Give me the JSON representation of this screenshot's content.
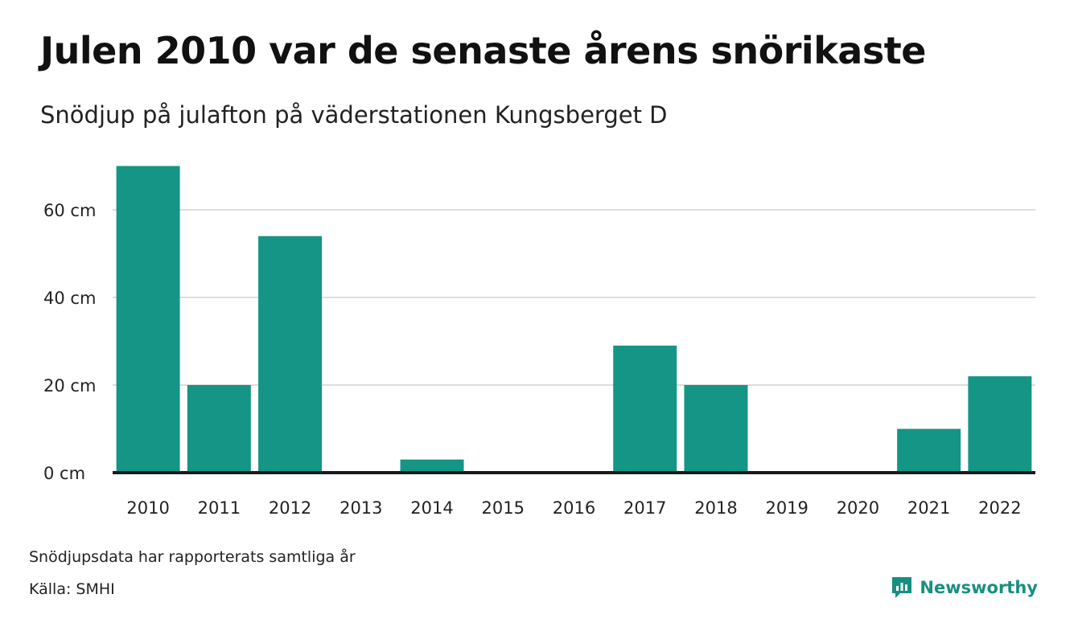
{
  "header": {
    "title": "Julen 2010 var de senaste årens snörikaste",
    "subtitle": "Snödjup på julafton på väderstationen Kungsberget D"
  },
  "footer": {
    "note": "Snödjupsdata har rapporterats samtliga år",
    "source": "Källa: SMHI",
    "brand": "Newsworthy"
  },
  "colors": {
    "bar": "#149585",
    "grid": "#dddddd",
    "baseline": "#1a1a1a",
    "brand": "#178f80"
  },
  "icons": {
    "brand": "newsworthy-logo-icon"
  },
  "chart_data": {
    "type": "bar",
    "categories": [
      "2010",
      "2011",
      "2012",
      "2013",
      "2014",
      "2015",
      "2016",
      "2017",
      "2018",
      "2019",
      "2020",
      "2021",
      "2022"
    ],
    "values": [
      70,
      20,
      54,
      0,
      3,
      0,
      0,
      29,
      20,
      0,
      0,
      10,
      22
    ],
    "unit": "cm",
    "yticks": [
      0,
      20,
      40,
      60
    ],
    "ytick_labels": [
      "0 cm",
      "20 cm",
      "40 cm",
      "60 cm"
    ],
    "ylim": [
      0,
      70
    ],
    "grid": true,
    "legend": "none"
  }
}
